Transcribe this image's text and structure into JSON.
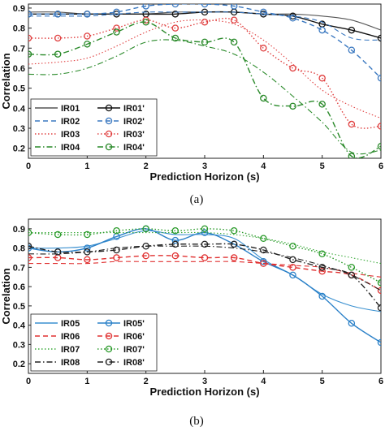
{
  "chart_data": [
    {
      "type": "line",
      "caption": "(a)",
      "xlabel": "Prediction Horizon (s)",
      "ylabel": "Correlation",
      "xlim": [
        0,
        6
      ],
      "ylim": [
        0.15,
        0.92
      ],
      "xticks": [
        "0",
        "1",
        "2",
        "3",
        "4",
        "5",
        "6"
      ],
      "yticks": [
        "0.2",
        "0.3",
        "0.4",
        "0.5",
        "0.6",
        "0.7",
        "0.8",
        "0.9"
      ],
      "legend": "bottom-left",
      "series": [
        {
          "name": "IR01",
          "color": "#555555",
          "style": "solid",
          "marker": false,
          "x": [
            0,
            0.5,
            1,
            1.5,
            2,
            2.5,
            3,
            3.5,
            4,
            4.5,
            5,
            5.5,
            6
          ],
          "y": [
            0.88,
            0.88,
            0.87,
            0.87,
            0.87,
            0.88,
            0.88,
            0.88,
            0.87,
            0.87,
            0.86,
            0.84,
            0.79
          ]
        },
        {
          "name": "IR01'",
          "color": "#111111",
          "style": "solid",
          "marker": true,
          "x": [
            0,
            0.5,
            1,
            1.5,
            2,
            2.5,
            3,
            3.5,
            4,
            4.5,
            5,
            5.5,
            6
          ],
          "y": [
            0.87,
            0.87,
            0.87,
            0.87,
            0.87,
            0.87,
            0.88,
            0.88,
            0.87,
            0.86,
            0.82,
            0.79,
            0.75
          ]
        },
        {
          "name": "IR02",
          "color": "#3a78c0",
          "style": "dashed",
          "marker": false,
          "x": [
            0,
            0.5,
            1,
            1.5,
            2,
            2.5,
            3,
            3.5,
            4,
            4.5,
            5,
            5.5,
            6
          ],
          "y": [
            0.86,
            0.86,
            0.86,
            0.87,
            0.88,
            0.88,
            0.88,
            0.88,
            0.87,
            0.86,
            0.83,
            0.75,
            0.74
          ]
        },
        {
          "name": "IR02'",
          "color": "#3a78c0",
          "style": "dashed",
          "marker": true,
          "x": [
            0,
            0.5,
            1,
            1.5,
            2,
            2.5,
            3,
            3.5,
            4,
            4.5,
            5,
            5.5,
            6
          ],
          "y": [
            0.87,
            0.87,
            0.87,
            0.88,
            0.91,
            0.92,
            0.92,
            0.91,
            0.88,
            0.85,
            0.79,
            0.69,
            0.55
          ]
        },
        {
          "name": "IR03",
          "color": "#e04040",
          "style": "dotted",
          "marker": false,
          "x": [
            0,
            0.5,
            1,
            1.5,
            2,
            2.5,
            3,
            3.5,
            4,
            4.5,
            5,
            5.5,
            6
          ],
          "y": [
            0.62,
            0.63,
            0.65,
            0.71,
            0.78,
            0.83,
            0.84,
            0.82,
            0.74,
            0.62,
            0.49,
            0.41,
            0.35
          ]
        },
        {
          "name": "IR03'",
          "color": "#e04040",
          "style": "dotted",
          "marker": true,
          "x": [
            0,
            0.5,
            1,
            1.5,
            2,
            2.5,
            3,
            3.5,
            4,
            4.5,
            5,
            5.5,
            6
          ],
          "y": [
            0.75,
            0.75,
            0.76,
            0.8,
            0.84,
            0.8,
            0.83,
            0.84,
            0.7,
            0.6,
            0.55,
            0.32,
            0.31
          ]
        },
        {
          "name": "IR04",
          "color": "#2a8a2a",
          "style": "dashdot",
          "marker": false,
          "x": [
            0,
            0.5,
            1,
            1.5,
            2,
            2.5,
            3,
            3.5,
            4,
            4.5,
            5,
            5.5,
            6
          ],
          "y": [
            0.57,
            0.57,
            0.6,
            0.66,
            0.73,
            0.74,
            0.71,
            0.67,
            0.58,
            0.46,
            0.33,
            0.18,
            0.19
          ]
        },
        {
          "name": "IR04'",
          "color": "#2a8a2a",
          "style": "dashdot",
          "marker": true,
          "x": [
            0,
            0.5,
            1,
            1.5,
            2,
            2.5,
            3,
            3.5,
            4,
            4.5,
            5,
            5.5,
            6
          ],
          "y": [
            0.67,
            0.67,
            0.72,
            0.78,
            0.83,
            0.75,
            0.73,
            0.73,
            0.45,
            0.41,
            0.42,
            0.16,
            0.21
          ]
        }
      ]
    },
    {
      "type": "line",
      "caption": "(b)",
      "xlabel": "Prediction Horizon (s)",
      "ylabel": "Correlation",
      "xlim": [
        0,
        6
      ],
      "ylim": [
        0.15,
        0.95
      ],
      "xticks": [
        "0",
        "1",
        "2",
        "3",
        "4",
        "5",
        "6"
      ],
      "yticks": [
        "0.2",
        "0.3",
        "0.4",
        "0.5",
        "0.6",
        "0.7",
        "0.8",
        "0.9"
      ],
      "legend": "bottom-left",
      "series": [
        {
          "name": "IR05",
          "color": "#3a90d0",
          "style": "solid",
          "marker": false,
          "x": [
            0,
            0.5,
            1,
            1.5,
            2,
            2.5,
            3,
            3.5,
            4,
            4.5,
            5,
            5.5,
            6
          ],
          "y": [
            0.8,
            0.8,
            0.81,
            0.85,
            0.89,
            0.87,
            0.87,
            0.85,
            0.74,
            0.66,
            0.56,
            0.5,
            0.47
          ]
        },
        {
          "name": "IR05'",
          "color": "#2a80c8",
          "style": "solid",
          "marker": true,
          "x": [
            0,
            0.5,
            1,
            1.5,
            2,
            2.5,
            3,
            3.5,
            4,
            4.5,
            5,
            5.5,
            6
          ],
          "y": [
            0.8,
            0.78,
            0.8,
            0.86,
            0.9,
            0.84,
            0.88,
            0.82,
            0.73,
            0.66,
            0.55,
            0.41,
            0.31
          ]
        },
        {
          "name": "IR06",
          "color": "#e03030",
          "style": "dashed",
          "marker": false,
          "x": [
            0,
            0.5,
            1,
            1.5,
            2,
            2.5,
            3,
            3.5,
            4,
            4.5,
            5,
            5.5,
            6
          ],
          "y": [
            0.72,
            0.72,
            0.72,
            0.73,
            0.73,
            0.73,
            0.73,
            0.73,
            0.72,
            0.71,
            0.7,
            0.67,
            0.65
          ]
        },
        {
          "name": "IR06'",
          "color": "#e03030",
          "style": "dashed",
          "marker": true,
          "x": [
            0,
            0.5,
            1,
            1.5,
            2,
            2.5,
            3,
            3.5,
            4,
            4.5,
            5,
            5.5,
            6
          ],
          "y": [
            0.75,
            0.75,
            0.74,
            0.75,
            0.76,
            0.76,
            0.75,
            0.75,
            0.72,
            0.7,
            0.68,
            0.66,
            0.58
          ]
        },
        {
          "name": "IR07",
          "color": "#3aaa3a",
          "style": "dotted",
          "marker": false,
          "x": [
            0,
            0.5,
            1,
            1.5,
            2,
            2.5,
            3,
            3.5,
            4,
            4.5,
            5,
            5.5,
            6
          ],
          "y": [
            0.88,
            0.88,
            0.88,
            0.88,
            0.88,
            0.88,
            0.88,
            0.87,
            0.85,
            0.82,
            0.78,
            0.75,
            0.72
          ]
        },
        {
          "name": "IR07'",
          "color": "#2a9a2a",
          "style": "dotted",
          "marker": true,
          "x": [
            0,
            0.5,
            1,
            1.5,
            2,
            2.5,
            3,
            3.5,
            4,
            4.5,
            5,
            5.5,
            6
          ],
          "y": [
            0.88,
            0.87,
            0.87,
            0.89,
            0.9,
            0.89,
            0.9,
            0.89,
            0.85,
            0.81,
            0.77,
            0.7,
            0.62
          ]
        },
        {
          "name": "IR08",
          "color": "#222222",
          "style": "dashdot",
          "marker": false,
          "x": [
            0,
            0.5,
            1,
            1.5,
            2,
            2.5,
            3,
            3.5,
            4,
            4.5,
            5,
            5.5,
            6
          ],
          "y": [
            0.77,
            0.77,
            0.78,
            0.8,
            0.81,
            0.81,
            0.81,
            0.8,
            0.78,
            0.75,
            0.71,
            0.66,
            0.58
          ]
        },
        {
          "name": "IR08'",
          "color": "#222222",
          "style": "dashdot",
          "marker": true,
          "x": [
            0,
            0.5,
            1,
            1.5,
            2,
            2.5,
            3,
            3.5,
            4,
            4.5,
            5,
            5.5,
            6
          ],
          "y": [
            0.81,
            0.78,
            0.78,
            0.79,
            0.81,
            0.82,
            0.82,
            0.82,
            0.79,
            0.74,
            0.7,
            0.66,
            0.49
          ]
        }
      ]
    }
  ]
}
